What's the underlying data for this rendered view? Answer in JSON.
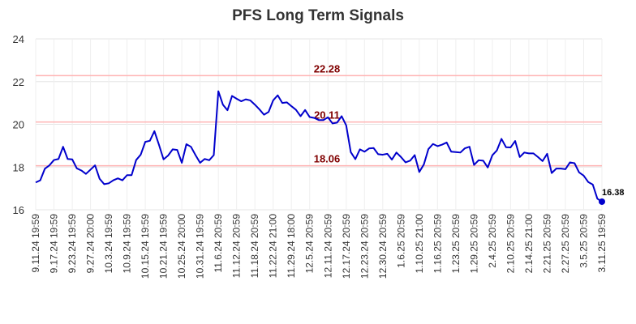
{
  "chart_data": {
    "type": "line",
    "title": "PFS Long Term Signals",
    "xlabel": "",
    "ylabel": "",
    "ylim": [
      16,
      24
    ],
    "yticks": [
      "16",
      "18",
      "20",
      "22",
      "24"
    ],
    "grid": true,
    "x_tick_labels": [
      "9.11.24 19:59",
      "9.17.24 19:59",
      "9.23.24 19:59",
      "9.27.24 20:00",
      "10.3.24 19:59",
      "10.9.24 19:59",
      "10.15.24 19:59",
      "10.21.24 19:59",
      "10.25.24 20:00",
      "10.31.24 19:59",
      "11.6.24 20:59",
      "11.12.24 20:59",
      "11.18.24 20:59",
      "11.22.24 21:00",
      "11.29.24 18:00",
      "12.5.24 20:59",
      "12.11.24 20:59",
      "12.17.24 20:59",
      "12.23.24 20:59",
      "12.30.24 20:59",
      "1.6.25 20:59",
      "1.10.25 21:00",
      "1.16.25 20:59",
      "1.23.25 20:59",
      "1.29.25 20:59",
      "2.4.25 20:59",
      "2.10.25 20:59",
      "2.14.25 21:00",
      "2.21.25 20:59",
      "2.27.25 20:59",
      "3.5.25 20:59",
      "3.11.25 19:59"
    ],
    "reference_lines": [
      {
        "value": 22.28,
        "label": "22.28",
        "color": "#ffb3b3"
      },
      {
        "value": 20.11,
        "label": "20.11",
        "color": "#ffb3b3"
      },
      {
        "value": 18.06,
        "label": "18.06",
        "color": "#ffb3b3"
      }
    ],
    "series": [
      {
        "color": "#0000cc",
        "values": [
          17.28,
          17.38,
          17.92,
          18.08,
          18.33,
          18.38,
          18.95,
          18.38,
          18.36,
          17.94,
          17.84,
          17.68,
          17.88,
          18.08,
          17.45,
          17.2,
          17.24,
          17.38,
          17.47,
          17.38,
          17.62,
          17.62,
          18.33,
          18.58,
          19.18,
          19.23,
          19.68,
          19.04,
          18.36,
          18.54,
          18.83,
          18.8,
          18.2,
          19.07,
          18.95,
          18.56,
          18.2,
          18.38,
          18.32,
          18.56,
          21.55,
          20.92,
          20.66,
          21.33,
          21.2,
          21.08,
          21.17,
          21.12,
          20.92,
          20.7,
          20.45,
          20.58,
          21.12,
          21.36,
          21.0,
          21.03,
          20.85,
          20.68,
          20.38,
          20.67,
          20.34,
          20.3,
          20.2,
          20.2,
          20.33,
          20.04,
          20.08,
          20.38,
          19.95,
          18.7,
          18.37,
          18.83,
          18.72,
          18.87,
          18.89,
          18.6,
          18.58,
          18.62,
          18.35,
          18.68,
          18.47,
          18.22,
          18.3,
          18.56,
          17.77,
          18.12,
          18.84,
          19.08,
          18.98,
          19.05,
          19.15,
          18.72,
          18.7,
          18.68,
          18.88,
          18.95,
          18.1,
          18.32,
          18.3,
          17.98,
          18.55,
          18.78,
          19.32,
          18.93,
          18.92,
          19.22,
          18.47,
          18.68,
          18.64,
          18.64,
          18.47,
          18.28,
          18.62,
          17.72,
          17.93,
          17.93,
          17.9,
          18.22,
          18.18,
          17.75,
          17.6,
          17.3,
          17.18,
          16.52,
          16.38
        ]
      }
    ],
    "last_value_label": "16.38"
  }
}
